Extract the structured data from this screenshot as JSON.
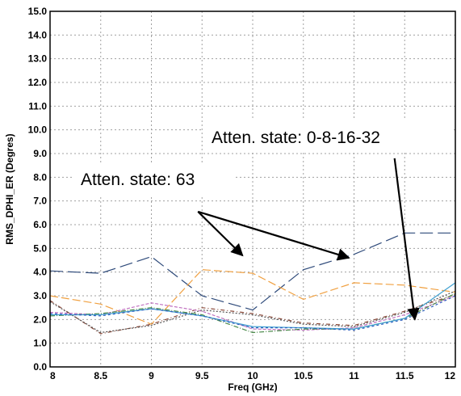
{
  "chart_data": {
    "type": "line",
    "xlabel": "Freq (GHz)",
    "ylabel": "RMS_DPHI_ER (Degres)",
    "xlim": [
      8,
      12
    ],
    "ylim": [
      0,
      15
    ],
    "x_ticks": [
      "8",
      "8.5",
      "9",
      "9.5",
      "10",
      "10.5",
      "11",
      "11.5",
      "12"
    ],
    "y_ticks": [
      "0.0",
      "1.0",
      "2.0",
      "3.0",
      "4.0",
      "5.0",
      "6.0",
      "7.0",
      "8.0",
      "9.0",
      "10.0",
      "11.0",
      "12.0",
      "13.0",
      "14.0",
      "15.0"
    ],
    "grid": true,
    "x": [
      8,
      8.5,
      9,
      9.5,
      10,
      10.5,
      11,
      11.5,
      12
    ],
    "series": [
      {
        "color": "#2e4a7a",
        "dash": "16,6",
        "values": [
          4.05,
          3.95,
          4.65,
          3.0,
          2.4,
          4.1,
          4.75,
          5.65,
          5.65
        ]
      },
      {
        "color": "#f0a040",
        "dash": "10,4",
        "values": [
          3.0,
          2.65,
          1.8,
          4.1,
          3.95,
          2.85,
          3.55,
          3.45,
          3.15
        ]
      },
      {
        "color": "#8b4a3a",
        "dash": "5,3,1,3",
        "values": [
          2.8,
          1.4,
          1.8,
          2.5,
          2.25,
          1.85,
          1.75,
          2.35,
          3.05
        ]
      },
      {
        "color": "#555555",
        "dash": "2,2",
        "values": [
          2.75,
          1.45,
          1.75,
          2.4,
          2.2,
          1.8,
          1.7,
          2.3,
          3.2
        ]
      },
      {
        "color": "#c070c0",
        "dash": "4,2",
        "values": [
          2.3,
          2.2,
          2.7,
          2.35,
          1.6,
          1.55,
          1.65,
          2.2,
          3.0
        ]
      },
      {
        "color": "#4a8a4a",
        "dash": "6,2,1,2",
        "values": [
          2.15,
          2.25,
          2.5,
          2.2,
          1.45,
          1.6,
          1.6,
          2.05,
          3.1
        ]
      },
      {
        "color": "#40a0d0",
        "dash": "",
        "values": [
          2.2,
          2.2,
          2.45,
          2.15,
          1.7,
          1.65,
          1.6,
          2.05,
          3.55
        ]
      },
      {
        "color": "#3060c0",
        "dash": "3,3",
        "values": [
          2.25,
          2.15,
          2.45,
          2.15,
          1.65,
          1.65,
          1.55,
          2.0,
          3.0
        ]
      }
    ],
    "annotations": [
      {
        "text": "Atten. state: 63",
        "anchor": [
          9.46,
          6.55
        ],
        "targets": [
          [
            9.9,
            4.7
          ],
          [
            10.95,
            4.6
          ]
        ]
      },
      {
        "text": "Atten. state: 0-8-16-32",
        "anchor": [
          11.4,
          8.8
        ],
        "targets": [
          [
            11.6,
            2.0
          ]
        ]
      }
    ]
  }
}
